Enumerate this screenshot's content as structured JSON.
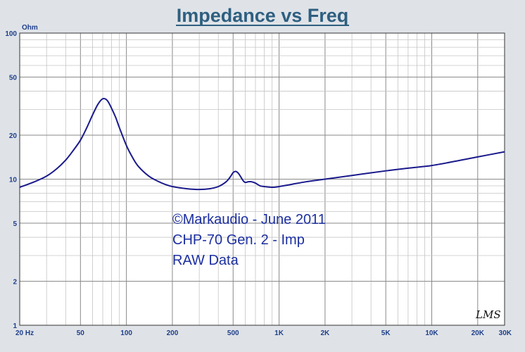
{
  "chart_data": {
    "type": "line",
    "title": "Impedance vs Freq",
    "ylabel": "Ohm",
    "xscale": "log",
    "yscale": "log",
    "xlim": [
      20,
      30000
    ],
    "ylim": [
      1,
      100
    ],
    "grid": true,
    "x_tick_labels": [
      "20 Hz",
      "50",
      "100",
      "200",
      "500",
      "1K",
      "2K",
      "5K",
      "10K",
      "20K",
      "30K"
    ],
    "y_tick_labels": [
      "100",
      "50",
      "20",
      "10",
      "5",
      "2",
      "1"
    ],
    "annotations": [
      "©Markaudio - June 2011",
      "CHP-70  Gen. 2 - Imp",
      "RAW Data"
    ],
    "signature": "LMS",
    "series": [
      {
        "color": "#1a1a8c",
        "x": [
          20,
          25,
          30,
          35,
          40,
          45,
          50,
          55,
          60,
          65,
          70,
          75,
          80,
          85,
          90,
          100,
          110,
          120,
          140,
          160,
          180,
          200,
          250,
          300,
          350,
          400,
          450,
          480,
          500,
          520,
          540,
          560,
          580,
          600,
          630,
          660,
          700,
          750,
          800,
          900,
          1000,
          1200,
          1500,
          2000,
          3000,
          5000,
          7000,
          10000,
          15000,
          20000,
          30000
        ],
        "y": [
          8.8,
          9.6,
          10.5,
          11.8,
          13.5,
          15.8,
          18.5,
          22.5,
          27.5,
          32.5,
          35.5,
          34.5,
          30.5,
          26.5,
          22.5,
          17.0,
          14.0,
          12.2,
          10.5,
          9.7,
          9.2,
          8.9,
          8.6,
          8.5,
          8.6,
          8.9,
          9.6,
          10.4,
          11.1,
          11.3,
          11.0,
          10.4,
          9.8,
          9.5,
          9.6,
          9.6,
          9.4,
          9.0,
          8.9,
          8.8,
          8.9,
          9.2,
          9.6,
          10.0,
          10.6,
          11.4,
          11.9,
          12.4,
          13.4,
          14.2,
          15.4
        ]
      }
    ]
  }
}
